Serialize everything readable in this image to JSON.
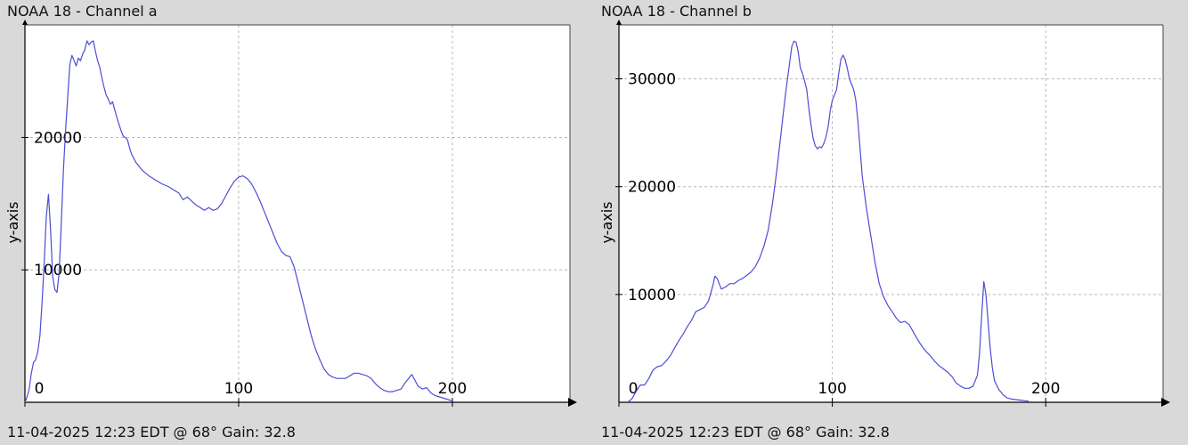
{
  "chart_data": [
    {
      "type": "line",
      "title": "NOAA 18 - Channel a",
      "footer": "11-04-2025 12:23 EDT @ 68° Gain: 32.8",
      "ylabel": "y-axis",
      "xlim": [
        0,
        255
      ],
      "ylim": [
        0,
        28500
      ],
      "x_ticks": [
        0,
        100,
        200
      ],
      "y_ticks": [
        10000,
        20000
      ],
      "x_tick_labels": [
        "0",
        "100",
        "200"
      ],
      "y_tick_labels": [
        "10000",
        "20000"
      ],
      "grid": true,
      "series_color": "#4d4dd6",
      "points": [
        [
          0,
          0
        ],
        [
          1,
          400
        ],
        [
          2,
          1000
        ],
        [
          3,
          2200
        ],
        [
          4,
          3000
        ],
        [
          5,
          3200
        ],
        [
          6,
          3800
        ],
        [
          7,
          5000
        ],
        [
          8,
          7500
        ],
        [
          9,
          10500
        ],
        [
          10,
          14000
        ],
        [
          11,
          15700
        ],
        [
          12,
          13000
        ],
        [
          13,
          9500
        ],
        [
          14,
          8500
        ],
        [
          15,
          8300
        ],
        [
          16,
          9800
        ],
        [
          17,
          13500
        ],
        [
          18,
          17500
        ],
        [
          19,
          20500
        ],
        [
          20,
          23000
        ],
        [
          21,
          25500
        ],
        [
          22,
          26200
        ],
        [
          23,
          25800
        ],
        [
          24,
          25400
        ],
        [
          25,
          26000
        ],
        [
          26,
          25800
        ],
        [
          27,
          26300
        ],
        [
          28,
          26600
        ],
        [
          29,
          27300
        ],
        [
          30,
          27000
        ],
        [
          31,
          27200
        ],
        [
          32,
          27300
        ],
        [
          33,
          26500
        ],
        [
          34,
          25800
        ],
        [
          35,
          25300
        ],
        [
          36,
          24500
        ],
        [
          37,
          23800
        ],
        [
          38,
          23200
        ],
        [
          39,
          22900
        ],
        [
          40,
          22500
        ],
        [
          41,
          22700
        ],
        [
          42,
          22100
        ],
        [
          43,
          21500
        ],
        [
          44,
          21000
        ],
        [
          45,
          20500
        ],
        [
          46,
          20100
        ],
        [
          47,
          20000
        ],
        [
          48,
          19800
        ],
        [
          49,
          19200
        ],
        [
          50,
          18700
        ],
        [
          52,
          18100
        ],
        [
          55,
          17500
        ],
        [
          58,
          17100
        ],
        [
          61,
          16800
        ],
        [
          64,
          16500
        ],
        [
          67,
          16300
        ],
        [
          70,
          16000
        ],
        [
          72,
          15800
        ],
        [
          74,
          15300
        ],
        [
          76,
          15500
        ],
        [
          78,
          15200
        ],
        [
          80,
          14900
        ],
        [
          82,
          14700
        ],
        [
          84,
          14500
        ],
        [
          86,
          14700
        ],
        [
          88,
          14500
        ],
        [
          90,
          14600
        ],
        [
          92,
          15000
        ],
        [
          94,
          15600
        ],
        [
          96,
          16200
        ],
        [
          98,
          16700
        ],
        [
          100,
          17000
        ],
        [
          102,
          17100
        ],
        [
          104,
          16900
        ],
        [
          106,
          16500
        ],
        [
          108,
          15900
        ],
        [
          110,
          15200
        ],
        [
          112,
          14400
        ],
        [
          114,
          13600
        ],
        [
          116,
          12800
        ],
        [
          118,
          12000
        ],
        [
          120,
          11400
        ],
        [
          122,
          11100
        ],
        [
          124,
          11000
        ],
        [
          126,
          10200
        ],
        [
          128,
          8900
        ],
        [
          130,
          7600
        ],
        [
          132,
          6300
        ],
        [
          134,
          5000
        ],
        [
          136,
          4000
        ],
        [
          138,
          3200
        ],
        [
          140,
          2500
        ],
        [
          142,
          2100
        ],
        [
          144,
          1900
        ],
        [
          146,
          1800
        ],
        [
          148,
          1800
        ],
        [
          150,
          1800
        ],
        [
          152,
          2000
        ],
        [
          154,
          2200
        ],
        [
          156,
          2200
        ],
        [
          158,
          2100
        ],
        [
          160,
          2000
        ],
        [
          162,
          1800
        ],
        [
          164,
          1400
        ],
        [
          166,
          1100
        ],
        [
          168,
          900
        ],
        [
          170,
          800
        ],
        [
          172,
          800
        ],
        [
          174,
          900
        ],
        [
          176,
          1000
        ],
        [
          178,
          1500
        ],
        [
          180,
          1900
        ],
        [
          181,
          2100
        ],
        [
          182,
          1800
        ],
        [
          184,
          1200
        ],
        [
          186,
          1000
        ],
        [
          188,
          1100
        ],
        [
          190,
          700
        ],
        [
          192,
          500
        ],
        [
          194,
          400
        ],
        [
          196,
          300
        ],
        [
          198,
          200
        ],
        [
          200,
          100
        ]
      ]
    },
    {
      "type": "line",
      "title": "NOAA 18 - Channel b",
      "footer": "11-04-2025 12:23 EDT @ 68° Gain: 32.8",
      "ylabel": "y-axis",
      "xlim": [
        0,
        255
      ],
      "ylim": [
        0,
        35000
      ],
      "x_ticks": [
        0,
        100,
        200
      ],
      "y_ticks": [
        10000,
        20000,
        30000
      ],
      "x_tick_labels": [
        "0",
        "100",
        "200"
      ],
      "y_tick_labels": [
        "10000",
        "20000",
        "30000"
      ],
      "grid": true,
      "series_color": "#4d4dd6",
      "points": [
        [
          4,
          0
        ],
        [
          6,
          300
        ],
        [
          8,
          1000
        ],
        [
          10,
          1600
        ],
        [
          12,
          1600
        ],
        [
          14,
          2200
        ],
        [
          16,
          3000
        ],
        [
          18,
          3300
        ],
        [
          20,
          3400
        ],
        [
          22,
          3800
        ],
        [
          24,
          4300
        ],
        [
          26,
          5000
        ],
        [
          28,
          5700
        ],
        [
          30,
          6300
        ],
        [
          32,
          7000
        ],
        [
          34,
          7600
        ],
        [
          36,
          8400
        ],
        [
          38,
          8600
        ],
        [
          40,
          8800
        ],
        [
          42,
          9400
        ],
        [
          44,
          10800
        ],
        [
          45,
          11700
        ],
        [
          46,
          11500
        ],
        [
          47,
          11000
        ],
        [
          48,
          10500
        ],
        [
          50,
          10700
        ],
        [
          52,
          11000
        ],
        [
          54,
          11000
        ],
        [
          56,
          11300
        ],
        [
          58,
          11500
        ],
        [
          60,
          11800
        ],
        [
          62,
          12100
        ],
        [
          64,
          12600
        ],
        [
          66,
          13400
        ],
        [
          68,
          14500
        ],
        [
          70,
          16000
        ],
        [
          72,
          18500
        ],
        [
          74,
          21500
        ],
        [
          76,
          25000
        ],
        [
          78,
          28500
        ],
        [
          80,
          31500
        ],
        [
          81,
          33000
        ],
        [
          82,
          33500
        ],
        [
          83,
          33400
        ],
        [
          84,
          32500
        ],
        [
          85,
          31000
        ],
        [
          86,
          30500
        ],
        [
          87,
          29800
        ],
        [
          88,
          29000
        ],
        [
          89,
          27200
        ],
        [
          90,
          25800
        ],
        [
          91,
          24500
        ],
        [
          92,
          23800
        ],
        [
          93,
          23500
        ],
        [
          94,
          23700
        ],
        [
          95,
          23600
        ],
        [
          96,
          24000
        ],
        [
          97,
          24600
        ],
        [
          98,
          25500
        ],
        [
          99,
          27000
        ],
        [
          100,
          28000
        ],
        [
          101,
          28500
        ],
        [
          102,
          29000
        ],
        [
          103,
          30500
        ],
        [
          104,
          31800
        ],
        [
          105,
          32200
        ],
        [
          106,
          31800
        ],
        [
          107,
          31000
        ],
        [
          108,
          30000
        ],
        [
          109,
          29500
        ],
        [
          110,
          29000
        ],
        [
          111,
          28000
        ],
        [
          112,
          26000
        ],
        [
          113,
          23500
        ],
        [
          114,
          21000
        ],
        [
          115,
          19500
        ],
        [
          116,
          18000
        ],
        [
          118,
          15500
        ],
        [
          120,
          13000
        ],
        [
          122,
          11000
        ],
        [
          124,
          9800
        ],
        [
          126,
          9000
        ],
        [
          128,
          8400
        ],
        [
          130,
          7800
        ],
        [
          132,
          7400
        ],
        [
          134,
          7500
        ],
        [
          136,
          7200
        ],
        [
          138,
          6500
        ],
        [
          140,
          5800
        ],
        [
          142,
          5200
        ],
        [
          144,
          4700
        ],
        [
          146,
          4300
        ],
        [
          148,
          3800
        ],
        [
          150,
          3400
        ],
        [
          152,
          3100
        ],
        [
          154,
          2800
        ],
        [
          156,
          2400
        ],
        [
          158,
          1800
        ],
        [
          160,
          1500
        ],
        [
          162,
          1300
        ],
        [
          164,
          1300
        ],
        [
          166,
          1500
        ],
        [
          168,
          2500
        ],
        [
          169,
          4500
        ],
        [
          170,
          8000
        ],
        [
          171,
          11200
        ],
        [
          172,
          10000
        ],
        [
          173,
          7500
        ],
        [
          174,
          5000
        ],
        [
          175,
          3200
        ],
        [
          176,
          2000
        ],
        [
          178,
          1200
        ],
        [
          180,
          700
        ],
        [
          182,
          400
        ],
        [
          184,
          300
        ],
        [
          186,
          250
        ],
        [
          188,
          200
        ],
        [
          190,
          150
        ],
        [
          192,
          100
        ]
      ]
    }
  ]
}
